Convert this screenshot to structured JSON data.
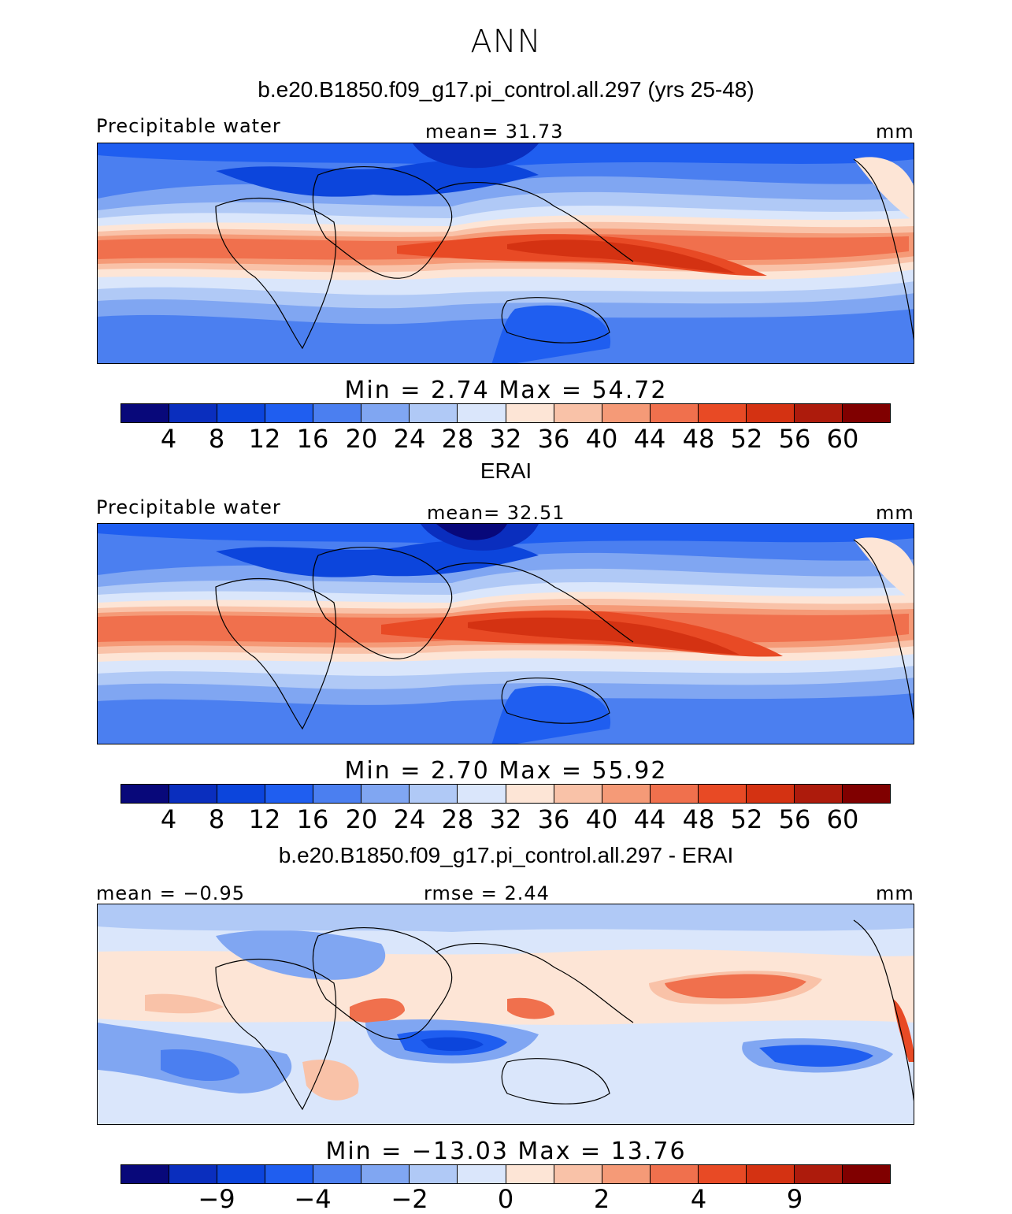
{
  "title": "ANN",
  "colors": [
    "#08087a",
    "#0a2ebe",
    "#0c45dc",
    "#1f5ef0",
    "#4b7ff0",
    "#80a6f2",
    "#b0c9f6",
    "#dae6fb",
    "#fde5d6",
    "#f9c2a8",
    "#f59a77",
    "#f0704d",
    "#e84a25",
    "#d43212",
    "#ad1b0c",
    "#800000"
  ],
  "panels": [
    {
      "case_title": "b.e20.B1850.f09_g17.pi_control.all.297 (yrs 25-48)",
      "left_label": "Precipitable water",
      "center_label": "mean=   31.73",
      "right_label": "mm",
      "minmax": "Min  =    2.74  Max  =   54.72",
      "colorbar_ticks": [
        "4",
        "8",
        "12",
        "16",
        "20",
        "24",
        "28",
        "32",
        "36",
        "40",
        "44",
        "48",
        "52",
        "56",
        "60"
      ]
    },
    {
      "case_title": "ERAI",
      "left_label": "Precipitable water",
      "center_label": "mean=   32.51",
      "right_label": "mm",
      "minmax": "Min  =    2.70  Max  =   55.92",
      "colorbar_ticks": [
        "4",
        "8",
        "12",
        "16",
        "20",
        "24",
        "28",
        "32",
        "36",
        "40",
        "44",
        "48",
        "52",
        "56",
        "60"
      ]
    },
    {
      "case_title": "b.e20.B1850.f09_g17.pi_control.all.297 - ERAI",
      "left_label": "mean  =   −0.95",
      "center_label": "rmse  =     2.44",
      "right_label": "mm",
      "minmax": "Min  = −13.03  Max  =   13.76",
      "colorbar_ticks": [
        "−9",
        "−4",
        "−2",
        "0",
        "2",
        "4",
        "9"
      ]
    }
  ]
}
